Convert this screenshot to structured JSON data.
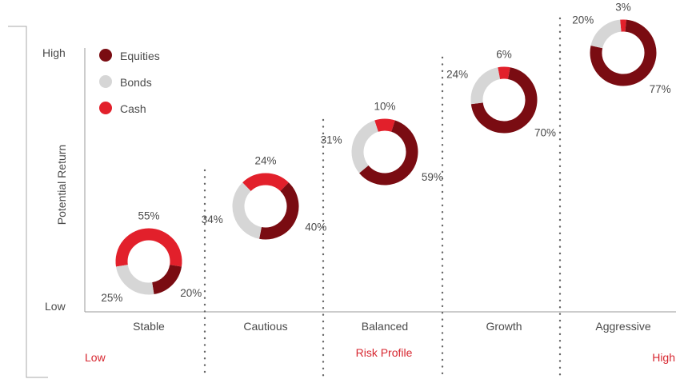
{
  "colors": {
    "equities": "#7a0c12",
    "bonds": "#d6d6d6",
    "cash": "#e2202b",
    "axis": "#9a9a9a",
    "text": "#4a4a4a",
    "accent_text": "#d7262f"
  },
  "chart_data": {
    "type": "donut-scatter",
    "ylabel": "Potential Return",
    "y_axis_labels": {
      "high": "High",
      "low": "Low"
    },
    "x_axis_title": "Risk Profile",
    "x_axis_ends": {
      "low": "Low",
      "high": "High"
    },
    "legend": [
      {
        "name": "Equities",
        "color": "#7a0c12"
      },
      {
        "name": "Bonds",
        "color": "#d6d6d6"
      },
      {
        "name": "Cash",
        "color": "#e2202b"
      }
    ],
    "legend_position": "top-left",
    "categories": [
      "Stable",
      "Cautious",
      "Balanced",
      "Growth",
      "Aggressive"
    ],
    "allocations": [
      {
        "profile": "Stable",
        "equities": 20,
        "bonds": 25,
        "cash": 55
      },
      {
        "profile": "Cautious",
        "equities": 40,
        "bonds": 34,
        "cash": 24
      },
      {
        "profile": "Balanced",
        "equities": 59,
        "bonds": 31,
        "cash": 10
      },
      {
        "profile": "Growth",
        "equities": 70,
        "bonds": 24,
        "cash": 6
      },
      {
        "profile": "Aggressive",
        "equities": 77,
        "bonds": 20,
        "cash": 3
      }
    ],
    "grid": false
  }
}
